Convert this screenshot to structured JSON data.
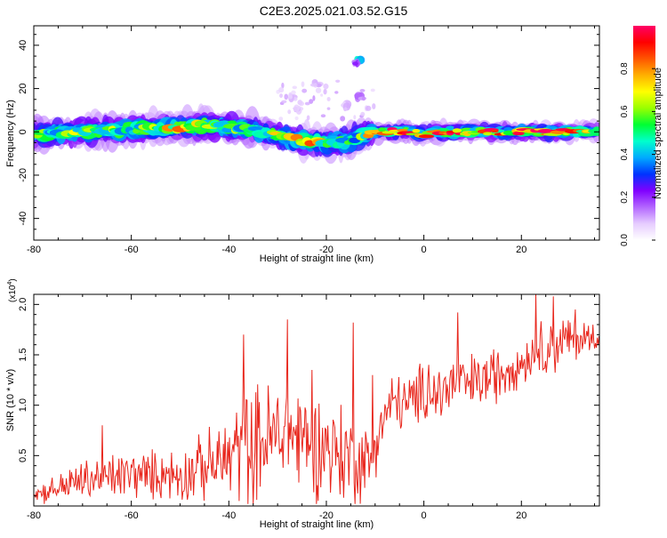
{
  "title": "C2E3.2025.021.03.52.G15",
  "colors": {
    "snr_line": "#e8261c",
    "axis": "#000000",
    "colormap": [
      "#ffffff",
      "#e6ccff",
      "#b366ff",
      "#8000ff",
      "#0033ff",
      "#00aaff",
      "#00ffcc",
      "#00ff33",
      "#99ff00",
      "#ffff00",
      "#ffb000",
      "#ff5500",
      "#ff0000",
      "#ff0066"
    ]
  },
  "chart_data": [
    {
      "type": "heatmap",
      "title": "",
      "xlabel": "Height of straight line (km)",
      "ylabel": "Frequency (Hz)",
      "xlim": [
        -80,
        36
      ],
      "ylim": [
        -50,
        49
      ],
      "xticks": [
        -80,
        -60,
        -40,
        -20,
        0,
        20
      ],
      "yticks": [
        -40,
        -20,
        0,
        20,
        40
      ],
      "colorbar": {
        "label": "Normalized spectral amplitude",
        "range": [
          0,
          1
        ],
        "ticks": [
          0.0,
          0.2,
          0.4,
          0.6,
          0.8
        ]
      },
      "ridge": {
        "description_points_x": [
          -80,
          -70,
          -60,
          -50,
          -45,
          -40,
          -35,
          -30,
          -25,
          -20,
          -17,
          -14,
          -12,
          -10,
          -5,
          0,
          5,
          10,
          15,
          20,
          25,
          30,
          35
        ],
        "center_freq": [
          -1,
          0,
          1,
          2,
          3,
          2,
          1,
          -2,
          -4,
          -5,
          -5,
          -3,
          -1,
          0,
          0,
          -1,
          0,
          0,
          0,
          0,
          0,
          0,
          0
        ],
        "peak_amplitude": [
          0.55,
          0.6,
          0.55,
          0.7,
          0.75,
          0.6,
          0.55,
          0.7,
          0.85,
          0.6,
          0.5,
          0.5,
          0.6,
          0.85,
          1.0,
          0.8,
          0.95,
          0.85,
          0.9,
          0.9,
          0.95,
          0.85,
          0.7
        ]
      },
      "blobs": [
        {
          "x": -13.5,
          "y": 33,
          "amplitude": 0.45
        },
        {
          "x": -14,
          "y": 32,
          "amplitude": 0.2
        },
        {
          "x": -13,
          "y": 16,
          "amplitude": 0.15
        },
        {
          "x": -22,
          "y": 22,
          "amplitude": 0.1
        },
        {
          "x": -27,
          "y": 16,
          "amplitude": 0.1
        },
        {
          "x": -26,
          "y": 10,
          "amplitude": 0.1
        },
        {
          "x": -16,
          "y": 12,
          "amplitude": 0.1
        }
      ]
    },
    {
      "type": "line",
      "title": "",
      "xlabel": "Height of straight line (km)",
      "ylabel": "SNR (10 * v/v)",
      "y_multiplier": "(x10",
      "y_multiplier_exp": "4",
      "xlim": [
        -80,
        36
      ],
      "ylim": [
        0,
        2.1
      ],
      "xticks": [
        -80,
        -60,
        -40,
        -20,
        0,
        20
      ],
      "yticks": [
        0.5,
        1.0,
        1.5,
        2.0
      ],
      "ytick_labels": [
        "0.5",
        "1.0",
        "1.5",
        "2.0"
      ],
      "series": [
        {
          "x": [
            -80,
            -77,
            -74,
            -71,
            -68,
            -65,
            -62,
            -59,
            -56,
            -53,
            -50,
            -47,
            -44,
            -41,
            -38,
            -35,
            -32,
            -29,
            -26,
            -23,
            -20,
            -17,
            -14,
            -11,
            -9,
            -6,
            -3,
            0,
            3,
            6,
            9,
            12,
            15,
            18,
            21,
            24,
            27,
            30,
            33,
            36
          ],
          "trend": [
            0.12,
            0.15,
            0.2,
            0.24,
            0.27,
            0.28,
            0.3,
            0.32,
            0.3,
            0.33,
            0.3,
            0.36,
            0.4,
            0.45,
            0.55,
            0.6,
            0.65,
            0.72,
            0.7,
            0.62,
            0.6,
            0.5,
            0.45,
            0.42,
            0.8,
            1.05,
            1.0,
            1.15,
            1.1,
            1.2,
            1.2,
            1.25,
            1.3,
            1.4,
            1.45,
            1.55,
            1.6,
            1.65,
            1.65,
            1.7
          ],
          "spread": [
            0.1,
            0.12,
            0.15,
            0.2,
            0.22,
            0.25,
            0.25,
            0.25,
            0.25,
            0.25,
            0.28,
            0.3,
            0.35,
            0.45,
            0.55,
            0.6,
            0.6,
            0.6,
            0.6,
            0.55,
            0.5,
            0.55,
            0.45,
            0.35,
            0.3,
            0.3,
            0.3,
            0.3,
            0.35,
            0.35,
            0.3,
            0.3,
            0.3,
            0.25,
            0.25,
            0.3,
            0.3,
            0.25,
            0.2,
            0.15
          ],
          "peaks": [
            {
              "x": -66,
              "y": 0.8
            },
            {
              "x": -37,
              "y": 1.7
            },
            {
              "x": -28,
              "y": 1.85
            },
            {
              "x": -23,
              "y": 1.35
            },
            {
              "x": -14.5,
              "y": 1.82
            },
            {
              "x": -10.5,
              "y": 1.3
            },
            {
              "x": 1,
              "y": 1.4
            },
            {
              "x": 7,
              "y": 1.92
            },
            {
              "x": 23,
              "y": 2.1
            },
            {
              "x": 26.5,
              "y": 2.08
            },
            {
              "x": 31,
              "y": 1.95
            }
          ]
        }
      ]
    }
  ]
}
